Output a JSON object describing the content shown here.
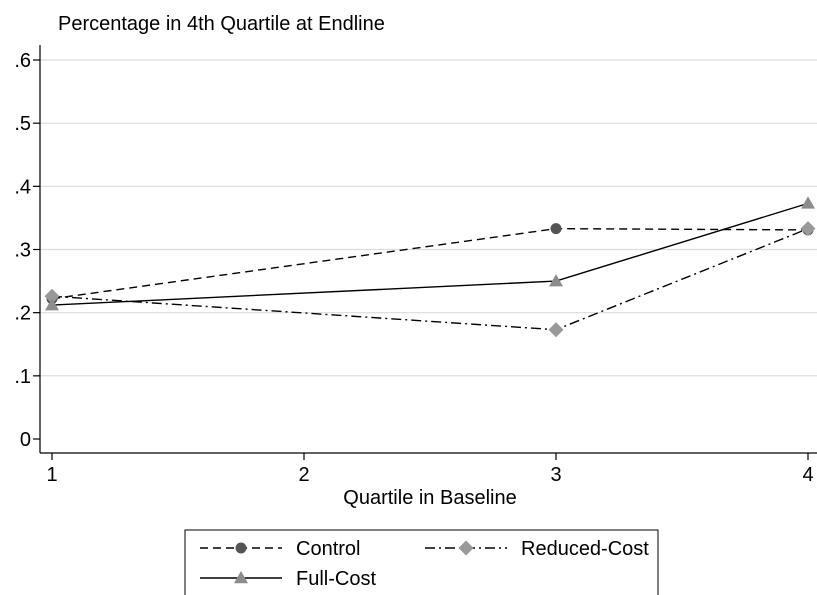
{
  "chart_data": {
    "type": "line",
    "title": "Percentage in 4th Quartile at Endline",
    "xlabel": "Quartile in Baseline",
    "ylabel": "",
    "x_ticks": [
      1,
      2,
      3,
      4
    ],
    "y_ticks": [
      0,
      0.1,
      0.2,
      0.3,
      0.4,
      0.5,
      0.6
    ],
    "y_tick_labels": [
      "0",
      ".1",
      ".2",
      ".3",
      ".4",
      ".5",
      ".6"
    ],
    "xlim": [
      1,
      4
    ],
    "ylim": [
      0,
      0.6
    ],
    "grid": "horizontal",
    "legend_position": "bottom",
    "series": [
      {
        "name": "Control",
        "x": [
          1,
          3,
          4
        ],
        "values": [
          0.222,
          0.333,
          0.331
        ],
        "color": "#555555",
        "line_style": "dashed",
        "marker": "circle"
      },
      {
        "name": "Reduced-Cost",
        "x": [
          1,
          3,
          4
        ],
        "values": [
          0.226,
          0.173,
          0.333
        ],
        "color": "#999999",
        "line_style": "dash-dot",
        "marker": "diamond"
      },
      {
        "name": "Full-Cost",
        "x": [
          1,
          3,
          4
        ],
        "values": [
          0.212,
          0.25,
          0.373
        ],
        "color": "#8c8c8c",
        "line_style": "solid",
        "marker": "triangle"
      }
    ]
  }
}
